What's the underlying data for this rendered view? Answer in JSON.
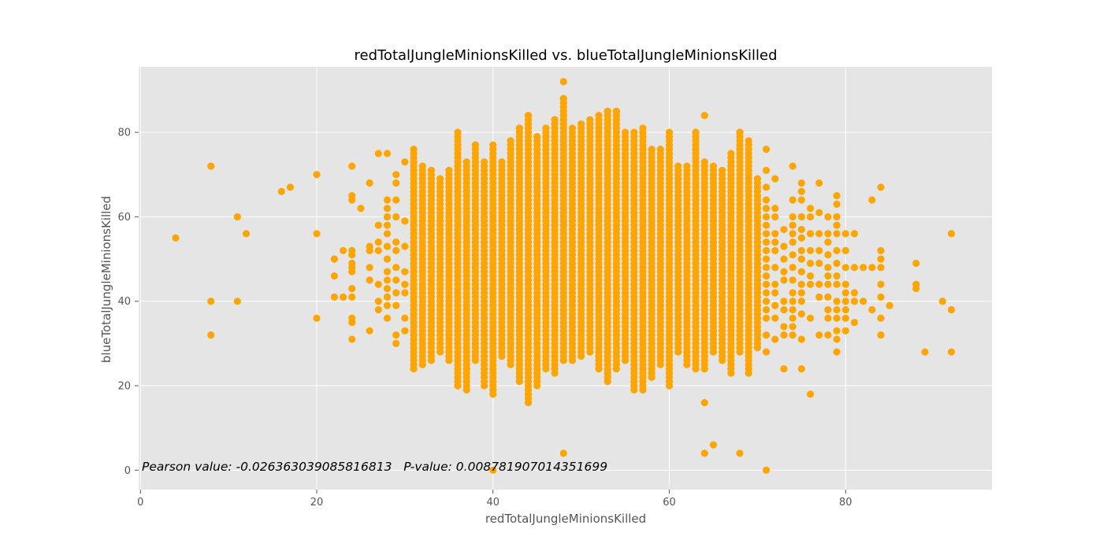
{
  "chart_data": {
    "type": "scatter",
    "title": "redTotalJungleMinionsKilled vs. blueTotalJungleMinionsKilled",
    "xlabel": "redTotalJungleMinionsKilled",
    "ylabel": "blueTotalJungleMinionsKilled",
    "xlim": [
      -0.2,
      96.6
    ],
    "ylim": [
      -4.6,
      95.5
    ],
    "xticks": [
      0,
      20,
      40,
      60,
      80
    ],
    "yticks": [
      0,
      20,
      40,
      60,
      80
    ],
    "grid": true,
    "color": "#ffa500",
    "background": "#e5e5e5",
    "annotation": "Pearson value: -0.026363039085816813   P-value: 0.008781907014351699",
    "dense_columns": [
      {
        "x": 31,
        "y_min": 24,
        "y_max": 76
      },
      {
        "x": 32,
        "y_min": 25,
        "y_max": 72
      },
      {
        "x": 33,
        "y_min": 26,
        "y_max": 71
      },
      {
        "x": 34,
        "y_min": 28,
        "y_max": 69
      },
      {
        "x": 35,
        "y_min": 26,
        "y_max": 71
      },
      {
        "x": 36,
        "y_min": 20,
        "y_max": 80
      },
      {
        "x": 37,
        "y_min": 19,
        "y_max": 73
      },
      {
        "x": 38,
        "y_min": 26,
        "y_max": 77
      },
      {
        "x": 39,
        "y_min": 20,
        "y_max": 73
      },
      {
        "x": 40,
        "y_min": 18,
        "y_max": 77
      },
      {
        "x": 41,
        "y_min": 27,
        "y_max": 73
      },
      {
        "x": 42,
        "y_min": 25,
        "y_max": 78
      },
      {
        "x": 43,
        "y_min": 21,
        "y_max": 81
      },
      {
        "x": 44,
        "y_min": 16,
        "y_max": 84
      },
      {
        "x": 45,
        "y_min": 20,
        "y_max": 79
      },
      {
        "x": 46,
        "y_min": 24,
        "y_max": 81
      },
      {
        "x": 47,
        "y_min": 23,
        "y_max": 83
      },
      {
        "x": 48,
        "y_min": 26,
        "y_max": 88
      },
      {
        "x": 49,
        "y_min": 26,
        "y_max": 81
      },
      {
        "x": 50,
        "y_min": 27,
        "y_max": 82
      },
      {
        "x": 51,
        "y_min": 28,
        "y_max": 83
      },
      {
        "x": 52,
        "y_min": 24,
        "y_max": 84
      },
      {
        "x": 53,
        "y_min": 21,
        "y_max": 85
      },
      {
        "x": 54,
        "y_min": 24,
        "y_max": 85
      },
      {
        "x": 55,
        "y_min": 26,
        "y_max": 80
      },
      {
        "x": 56,
        "y_min": 19,
        "y_max": 80
      },
      {
        "x": 57,
        "y_min": 19,
        "y_max": 81
      },
      {
        "x": 58,
        "y_min": 22,
        "y_max": 76
      },
      {
        "x": 59,
        "y_min": 25,
        "y_max": 76
      },
      {
        "x": 60,
        "y_min": 20,
        "y_max": 80
      },
      {
        "x": 61,
        "y_min": 28,
        "y_max": 72
      },
      {
        "x": 62,
        "y_min": 25,
        "y_max": 72
      },
      {
        "x": 63,
        "y_min": 24,
        "y_max": 80
      },
      {
        "x": 64,
        "y_min": 24,
        "y_max": 73
      },
      {
        "x": 65,
        "y_min": 28,
        "y_max": 72
      },
      {
        "x": 66,
        "y_min": 26,
        "y_max": 71
      },
      {
        "x": 67,
        "y_min": 23,
        "y_max": 75
      },
      {
        "x": 68,
        "y_min": 28,
        "y_max": 80
      },
      {
        "x": 69,
        "y_min": 23,
        "y_max": 78
      },
      {
        "x": 70,
        "y_min": 29,
        "y_max": 69
      }
    ],
    "points": [
      {
        "x": 4,
        "y": 55
      },
      {
        "x": 8,
        "y": 72
      },
      {
        "x": 8,
        "y": 40
      },
      {
        "x": 8,
        "y": 32
      },
      {
        "x": 11,
        "y": 60
      },
      {
        "x": 11,
        "y": 40
      },
      {
        "x": 12,
        "y": 56
      },
      {
        "x": 16,
        "y": 66
      },
      {
        "x": 17,
        "y": 67
      },
      {
        "x": 20,
        "y": 70
      },
      {
        "x": 20,
        "y": 56
      },
      {
        "x": 20,
        "y": 36
      },
      {
        "x": 22,
        "y": 50
      },
      {
        "x": 22,
        "y": 46
      },
      {
        "x": 22,
        "y": 41
      },
      {
        "x": 23,
        "y": 52
      },
      {
        "x": 23,
        "y": 41
      },
      {
        "x": 24,
        "y": 72
      },
      {
        "x": 24,
        "y": 65
      },
      {
        "x": 24,
        "y": 64
      },
      {
        "x": 24,
        "y": 52
      },
      {
        "x": 24,
        "y": 51
      },
      {
        "x": 24,
        "y": 49
      },
      {
        "x": 24,
        "y": 48
      },
      {
        "x": 24,
        "y": 47
      },
      {
        "x": 24,
        "y": 43
      },
      {
        "x": 24,
        "y": 41
      },
      {
        "x": 24,
        "y": 36
      },
      {
        "x": 24,
        "y": 35
      },
      {
        "x": 24,
        "y": 31
      },
      {
        "x": 25,
        "y": 62
      },
      {
        "x": 26,
        "y": 68
      },
      {
        "x": 26,
        "y": 53
      },
      {
        "x": 26,
        "y": 52
      },
      {
        "x": 26,
        "y": 48
      },
      {
        "x": 26,
        "y": 45
      },
      {
        "x": 26,
        "y": 33
      },
      {
        "x": 27,
        "y": 75
      },
      {
        "x": 27,
        "y": 58
      },
      {
        "x": 27,
        "y": 54
      },
      {
        "x": 27,
        "y": 52
      },
      {
        "x": 27,
        "y": 44
      },
      {
        "x": 27,
        "y": 40
      },
      {
        "x": 27,
        "y": 38
      },
      {
        "x": 28,
        "y": 75
      },
      {
        "x": 28,
        "y": 64
      },
      {
        "x": 28,
        "y": 62
      },
      {
        "x": 28,
        "y": 60
      },
      {
        "x": 28,
        "y": 58
      },
      {
        "x": 28,
        "y": 56
      },
      {
        "x": 28,
        "y": 53
      },
      {
        "x": 28,
        "y": 50
      },
      {
        "x": 28,
        "y": 47
      },
      {
        "x": 28,
        "y": 45
      },
      {
        "x": 28,
        "y": 43
      },
      {
        "x": 28,
        "y": 41
      },
      {
        "x": 28,
        "y": 39
      },
      {
        "x": 28,
        "y": 36
      },
      {
        "x": 29,
        "y": 70
      },
      {
        "x": 29,
        "y": 68
      },
      {
        "x": 29,
        "y": 64
      },
      {
        "x": 29,
        "y": 60
      },
      {
        "x": 29,
        "y": 54
      },
      {
        "x": 29,
        "y": 52
      },
      {
        "x": 29,
        "y": 48
      },
      {
        "x": 29,
        "y": 45
      },
      {
        "x": 29,
        "y": 42
      },
      {
        "x": 29,
        "y": 39
      },
      {
        "x": 29,
        "y": 32
      },
      {
        "x": 29,
        "y": 30
      },
      {
        "x": 30,
        "y": 73
      },
      {
        "x": 30,
        "y": 59
      },
      {
        "x": 30,
        "y": 53
      },
      {
        "x": 30,
        "y": 47
      },
      {
        "x": 30,
        "y": 44
      },
      {
        "x": 30,
        "y": 42
      },
      {
        "x": 30,
        "y": 36
      },
      {
        "x": 30,
        "y": 33
      },
      {
        "x": 36,
        "y": 20
      },
      {
        "x": 37,
        "y": 24
      },
      {
        "x": 38,
        "y": 77
      },
      {
        "x": 40,
        "y": 0
      },
      {
        "x": 43,
        "y": 81
      },
      {
        "x": 44,
        "y": 84
      },
      {
        "x": 47,
        "y": 83
      },
      {
        "x": 48,
        "y": 92
      },
      {
        "x": 48,
        "y": 88
      },
      {
        "x": 48,
        "y": 83
      },
      {
        "x": 48,
        "y": 4
      },
      {
        "x": 53,
        "y": 85
      },
      {
        "x": 54,
        "y": 85
      },
      {
        "x": 63,
        "y": 80
      },
      {
        "x": 64,
        "y": 84
      },
      {
        "x": 64,
        "y": 16
      },
      {
        "x": 64,
        "y": 4
      },
      {
        "x": 65,
        "y": 6
      },
      {
        "x": 68,
        "y": 80
      },
      {
        "x": 68,
        "y": 4
      },
      {
        "x": 71,
        "y": 76
      },
      {
        "x": 71,
        "y": 71
      },
      {
        "x": 71,
        "y": 67
      },
      {
        "x": 71,
        "y": 64
      },
      {
        "x": 71,
        "y": 62
      },
      {
        "x": 71,
        "y": 60
      },
      {
        "x": 71,
        "y": 58
      },
      {
        "x": 71,
        "y": 56
      },
      {
        "x": 71,
        "y": 54
      },
      {
        "x": 71,
        "y": 52
      },
      {
        "x": 71,
        "y": 50
      },
      {
        "x": 71,
        "y": 48
      },
      {
        "x": 71,
        "y": 46
      },
      {
        "x": 71,
        "y": 44
      },
      {
        "x": 71,
        "y": 42
      },
      {
        "x": 71,
        "y": 40
      },
      {
        "x": 71,
        "y": 38
      },
      {
        "x": 71,
        "y": 36
      },
      {
        "x": 71,
        "y": 32
      },
      {
        "x": 71,
        "y": 28
      },
      {
        "x": 71,
        "y": 0
      },
      {
        "x": 72,
        "y": 69
      },
      {
        "x": 72,
        "y": 62
      },
      {
        "x": 72,
        "y": 60
      },
      {
        "x": 72,
        "y": 56
      },
      {
        "x": 72,
        "y": 54
      },
      {
        "x": 72,
        "y": 52
      },
      {
        "x": 72,
        "y": 48
      },
      {
        "x": 72,
        "y": 44
      },
      {
        "x": 72,
        "y": 42
      },
      {
        "x": 72,
        "y": 39
      },
      {
        "x": 72,
        "y": 36
      },
      {
        "x": 72,
        "y": 31
      },
      {
        "x": 73,
        "y": 57
      },
      {
        "x": 73,
        "y": 53
      },
      {
        "x": 73,
        "y": 50
      },
      {
        "x": 73,
        "y": 47
      },
      {
        "x": 73,
        "y": 45
      },
      {
        "x": 73,
        "y": 40
      },
      {
        "x": 73,
        "y": 38
      },
      {
        "x": 73,
        "y": 34
      },
      {
        "x": 73,
        "y": 32
      },
      {
        "x": 73,
        "y": 24
      },
      {
        "x": 74,
        "y": 72
      },
      {
        "x": 74,
        "y": 64
      },
      {
        "x": 74,
        "y": 60
      },
      {
        "x": 74,
        "y": 58
      },
      {
        "x": 74,
        "y": 56
      },
      {
        "x": 74,
        "y": 54
      },
      {
        "x": 74,
        "y": 51
      },
      {
        "x": 74,
        "y": 48
      },
      {
        "x": 74,
        "y": 45
      },
      {
        "x": 74,
        "y": 42
      },
      {
        "x": 74,
        "y": 40
      },
      {
        "x": 74,
        "y": 38
      },
      {
        "x": 74,
        "y": 36
      },
      {
        "x": 74,
        "y": 34
      },
      {
        "x": 74,
        "y": 32
      },
      {
        "x": 75,
        "y": 68
      },
      {
        "x": 75,
        "y": 66
      },
      {
        "x": 75,
        "y": 64
      },
      {
        "x": 75,
        "y": 60
      },
      {
        "x": 75,
        "y": 57
      },
      {
        "x": 75,
        "y": 55
      },
      {
        "x": 75,
        "y": 52
      },
      {
        "x": 75,
        "y": 50
      },
      {
        "x": 75,
        "y": 47
      },
      {
        "x": 75,
        "y": 44
      },
      {
        "x": 75,
        "y": 42
      },
      {
        "x": 75,
        "y": 40
      },
      {
        "x": 75,
        "y": 37
      },
      {
        "x": 75,
        "y": 31
      },
      {
        "x": 75,
        "y": 24
      },
      {
        "x": 76,
        "y": 62
      },
      {
        "x": 76,
        "y": 60
      },
      {
        "x": 76,
        "y": 56
      },
      {
        "x": 76,
        "y": 52
      },
      {
        "x": 76,
        "y": 49
      },
      {
        "x": 76,
        "y": 46
      },
      {
        "x": 76,
        "y": 44
      },
      {
        "x": 76,
        "y": 36
      },
      {
        "x": 76,
        "y": 18
      },
      {
        "x": 77,
        "y": 68
      },
      {
        "x": 77,
        "y": 61
      },
      {
        "x": 77,
        "y": 56
      },
      {
        "x": 77,
        "y": 52
      },
      {
        "x": 77,
        "y": 49
      },
      {
        "x": 77,
        "y": 44
      },
      {
        "x": 77,
        "y": 41
      },
      {
        "x": 77,
        "y": 32
      },
      {
        "x": 78,
        "y": 60
      },
      {
        "x": 78,
        "y": 56
      },
      {
        "x": 78,
        "y": 54
      },
      {
        "x": 78,
        "y": 51
      },
      {
        "x": 78,
        "y": 48
      },
      {
        "x": 78,
        "y": 46
      },
      {
        "x": 78,
        "y": 44
      },
      {
        "x": 78,
        "y": 41
      },
      {
        "x": 78,
        "y": 38
      },
      {
        "x": 78,
        "y": 36
      },
      {
        "x": 78,
        "y": 32
      },
      {
        "x": 79,
        "y": 65
      },
      {
        "x": 79,
        "y": 63
      },
      {
        "x": 79,
        "y": 60
      },
      {
        "x": 79,
        "y": 58
      },
      {
        "x": 79,
        "y": 56
      },
      {
        "x": 79,
        "y": 52
      },
      {
        "x": 79,
        "y": 49
      },
      {
        "x": 79,
        "y": 46
      },
      {
        "x": 79,
        "y": 44
      },
      {
        "x": 79,
        "y": 40
      },
      {
        "x": 79,
        "y": 38
      },
      {
        "x": 79,
        "y": 36
      },
      {
        "x": 79,
        "y": 33
      },
      {
        "x": 79,
        "y": 31
      },
      {
        "x": 79,
        "y": 28
      },
      {
        "x": 80,
        "y": 56
      },
      {
        "x": 80,
        "y": 52
      },
      {
        "x": 80,
        "y": 48
      },
      {
        "x": 80,
        "y": 44
      },
      {
        "x": 80,
        "y": 42
      },
      {
        "x": 80,
        "y": 40
      },
      {
        "x": 80,
        "y": 38
      },
      {
        "x": 80,
        "y": 36
      },
      {
        "x": 80,
        "y": 33
      },
      {
        "x": 81,
        "y": 56
      },
      {
        "x": 81,
        "y": 48
      },
      {
        "x": 81,
        "y": 42
      },
      {
        "x": 81,
        "y": 40
      },
      {
        "x": 81,
        "y": 35
      },
      {
        "x": 82,
        "y": 48
      },
      {
        "x": 82,
        "y": 40
      },
      {
        "x": 83,
        "y": 64
      },
      {
        "x": 83,
        "y": 48
      },
      {
        "x": 83,
        "y": 38
      },
      {
        "x": 84,
        "y": 67
      },
      {
        "x": 84,
        "y": 52
      },
      {
        "x": 84,
        "y": 50
      },
      {
        "x": 84,
        "y": 48
      },
      {
        "x": 84,
        "y": 44
      },
      {
        "x": 84,
        "y": 41
      },
      {
        "x": 84,
        "y": 36
      },
      {
        "x": 84,
        "y": 32
      },
      {
        "x": 85,
        "y": 39
      },
      {
        "x": 88,
        "y": 49
      },
      {
        "x": 88,
        "y": 44
      },
      {
        "x": 88,
        "y": 43
      },
      {
        "x": 89,
        "y": 28
      },
      {
        "x": 91,
        "y": 40
      },
      {
        "x": 92,
        "y": 56
      },
      {
        "x": 92,
        "y": 38
      },
      {
        "x": 92,
        "y": 28
      }
    ]
  }
}
